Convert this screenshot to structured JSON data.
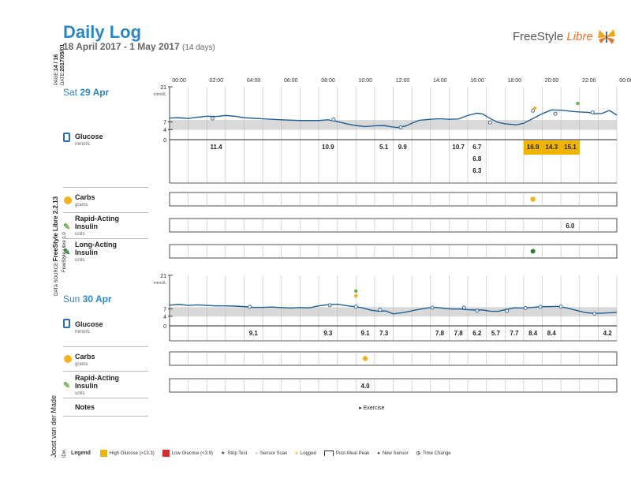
{
  "header": {
    "title": "Daily Log",
    "date_range": "18 April 2017 - 1 May 2017",
    "days": "(14 days)",
    "brand_freestyle": "FreeStyle",
    "brand_libre": "Libre"
  },
  "sidebar": {
    "page_label": "PAGE:",
    "page_value": "14 / 16",
    "date_label": "DATE:",
    "date_value": "2017/05/01",
    "source_label": "DATA SOURCE:",
    "source_value": "FreeStyle Libre 2.2.13",
    "source_sub": "FreeStyle Libre 1.0",
    "patient_name": "Joost van der Made",
    "id_label": "ID#:"
  },
  "time_axis": [
    "00:00",
    "02:00",
    "04:00",
    "06:00",
    "08:00",
    "10:00",
    "12:00",
    "14:00",
    "16:00",
    "18:00",
    "20:00",
    "22:00",
    "00:00"
  ],
  "glucose_axis": {
    "unit": "mmol/L",
    "ticks": [
      "21",
      "7",
      "4",
      "0"
    ],
    "ymax": 21,
    "target_low": 3.9,
    "target_high": 7.8
  },
  "labels": {
    "glucose": "Glucose",
    "glucose_unit": "mmol/L",
    "carbs": "Carbs",
    "carbs_unit": "grams",
    "rapid": "Rapid-Acting Insulin",
    "rapid_unit": "units",
    "long": "Long-Acting Insulin",
    "long_unit": "units",
    "notes": "Notes"
  },
  "days": [
    {
      "day_name": "Sat",
      "day_num": "29 Apr",
      "glucose_curve": [
        [
          0,
          8.6
        ],
        [
          0.5,
          8.7
        ],
        [
          1,
          8.4
        ],
        [
          1.5,
          8.9
        ],
        [
          2,
          9.3
        ],
        [
          2.5,
          9.2
        ],
        [
          3,
          9.6
        ],
        [
          3.5,
          9.3
        ],
        [
          4,
          8.7
        ],
        [
          5,
          8.3
        ],
        [
          6,
          7.9
        ],
        [
          7,
          7.6
        ],
        [
          8,
          7.6
        ],
        [
          8.5,
          7.9
        ],
        [
          9,
          7.2
        ],
        [
          9.5,
          6.3
        ],
        [
          10,
          5.6
        ],
        [
          10.5,
          5.2
        ],
        [
          11,
          5.5
        ],
        [
          11.5,
          5.6
        ],
        [
          12,
          5.0
        ],
        [
          12.3,
          4.8
        ],
        [
          12.7,
          5.5
        ],
        [
          13,
          6.5
        ],
        [
          13.4,
          7.7
        ],
        [
          14,
          8.1
        ],
        [
          14.5,
          8.3
        ],
        [
          15,
          8.1
        ],
        [
          15.5,
          8.2
        ],
        [
          16,
          9.6
        ],
        [
          16.5,
          10.5
        ],
        [
          16.8,
          10.2
        ],
        [
          17.2,
          8.4
        ],
        [
          17.6,
          6.9
        ],
        [
          18,
          6.3
        ],
        [
          18.6,
          5.9
        ],
        [
          19,
          6.5
        ],
        [
          19.5,
          8.4
        ],
        [
          20,
          10.3
        ],
        [
          20.5,
          11.8
        ],
        [
          21,
          11.7
        ],
        [
          21.5,
          11.3
        ],
        [
          22,
          11.0
        ],
        [
          22.5,
          10.8
        ],
        [
          22.8,
          10.3
        ],
        [
          23.2,
          10.4
        ],
        [
          23.6,
          11.6
        ],
        [
          24,
          9.8
        ]
      ],
      "scans": [
        [
          2.3,
          8.4
        ],
        [
          8.8,
          8.0
        ],
        [
          12.4,
          4.9
        ],
        [
          17.2,
          6.8
        ],
        [
          19.5,
          11.5
        ],
        [
          20.7,
          10.3
        ],
        [
          22.7,
          10.8
        ]
      ],
      "values": [
        {
          "t": 2.5,
          "text": "11.4",
          "row": 0,
          "high": false
        },
        {
          "t": 8.8,
          "text": "10.9",
          "row": 0,
          "high": false
        },
        {
          "t": 11.2,
          "text": "5.1",
          "row": 0,
          "high": false
        },
        {
          "t": 12.2,
          "text": "9.9",
          "row": 0,
          "high": false
        },
        {
          "t": 15.2,
          "text": "10.7",
          "row": 0,
          "high": false
        },
        {
          "t": 16.2,
          "text": "6.7",
          "row": 0,
          "high": false
        },
        {
          "t": 16.2,
          "text": "6.8",
          "row": 1,
          "high": false
        },
        {
          "t": 16.2,
          "text": "6.3",
          "row": 2,
          "high": false
        },
        {
          "t": 19.5,
          "text": "16.9",
          "row": 0,
          "high": true
        },
        {
          "t": 20.5,
          "text": "14.3",
          "row": 0,
          "high": true
        },
        {
          "t": 21.5,
          "text": "15.1",
          "row": 0,
          "high": true
        }
      ],
      "carbs": [
        {
          "t": 19.5
        }
      ],
      "rapid": [
        {
          "t": 21.8,
          "text": "6.0"
        }
      ],
      "long": [
        {
          "t": 19.5
        }
      ],
      "logged_markers": [
        {
          "t": 19.6,
          "kind": "carbs"
        },
        {
          "t": 21.9,
          "kind": "insulin"
        }
      ]
    },
    {
      "day_name": "Sun",
      "day_num": "30 Apr",
      "glucose_curve": [
        [
          0,
          8.6
        ],
        [
          0.5,
          8.9
        ],
        [
          1,
          8.5
        ],
        [
          1.5,
          8.7
        ],
        [
          2,
          8.5
        ],
        [
          2.5,
          8.3
        ],
        [
          3,
          8.3
        ],
        [
          3.5,
          8.2
        ],
        [
          4,
          8.0
        ],
        [
          4.5,
          7.7
        ],
        [
          5,
          7.7
        ],
        [
          5.5,
          7.8
        ],
        [
          6,
          7.6
        ],
        [
          6.5,
          7.4
        ],
        [
          7,
          7.6
        ],
        [
          7.5,
          7.5
        ],
        [
          8,
          8.3
        ],
        [
          8.5,
          8.8
        ],
        [
          9,
          9.0
        ],
        [
          9.4,
          8.5
        ],
        [
          9.8,
          8.1
        ],
        [
          10.3,
          7.6
        ],
        [
          10.8,
          6.5
        ],
        [
          11.2,
          6.1
        ],
        [
          11.6,
          6.2
        ],
        [
          12,
          5.0
        ],
        [
          12.6,
          5.6
        ],
        [
          13.2,
          6.6
        ],
        [
          13.8,
          7.4
        ],
        [
          14.3,
          7.7
        ],
        [
          14.8,
          7.2
        ],
        [
          15.2,
          7.0
        ],
        [
          15.6,
          7.0
        ],
        [
          16,
          6.7
        ],
        [
          16.4,
          6.6
        ],
        [
          16.8,
          6.6
        ],
        [
          17.2,
          6.1
        ],
        [
          17.6,
          6.0
        ],
        [
          18,
          6.7
        ],
        [
          18.5,
          7.5
        ],
        [
          19,
          7.4
        ],
        [
          19.5,
          7.7
        ],
        [
          20,
          8.0
        ],
        [
          20.4,
          8.0
        ],
        [
          20.8,
          8.1
        ],
        [
          21.3,
          7.5
        ],
        [
          21.8,
          6.5
        ],
        [
          22.3,
          5.5
        ],
        [
          22.8,
          5.2
        ],
        [
          23.3,
          5.3
        ],
        [
          24,
          5.6
        ]
      ],
      "scans": [
        [
          4.3,
          7.9
        ],
        [
          8.6,
          8.6
        ],
        [
          10,
          8.0
        ],
        [
          11.3,
          6.7
        ],
        [
          14.1,
          7.6
        ],
        [
          15.8,
          7.6
        ],
        [
          16.5,
          6.3
        ],
        [
          18.1,
          6.2
        ],
        [
          19.1,
          7.4
        ],
        [
          19.9,
          7.9
        ],
        [
          21,
          8.0
        ],
        [
          22.8,
          5.1
        ]
      ],
      "values": [
        {
          "t": 4.5,
          "text": "9.1",
          "row": 0,
          "high": false
        },
        {
          "t": 8.5,
          "text": "9.3",
          "row": 0,
          "high": false
        },
        {
          "t": 10.3,
          "text": "9.1",
          "row": 0,
          "high": false
        },
        {
          "t": 11.2,
          "text": "7.3",
          "row": 0,
          "high": false
        },
        {
          "t": 14.2,
          "text": "7.8",
          "row": 0,
          "high": false
        },
        {
          "t": 15.2,
          "text": "7.8",
          "row": 0,
          "high": false
        },
        {
          "t": 16.2,
          "text": "6.2",
          "row": 0,
          "high": false
        },
        {
          "t": 17.2,
          "text": "5.7",
          "row": 0,
          "high": false
        },
        {
          "t": 18.2,
          "text": "7.7",
          "row": 0,
          "high": false
        },
        {
          "t": 19.2,
          "text": "8.4",
          "row": 0,
          "high": false
        },
        {
          "t": 20.5,
          "text": "8.4",
          "row": 0,
          "high": false
        },
        {
          "t": 23.5,
          "text": "4.2",
          "row": 0,
          "high": false
        }
      ],
      "carbs": [
        {
          "t": 10.3
        }
      ],
      "rapid": [
        {
          "t": 10.3,
          "text": "4.0"
        }
      ],
      "notes": [
        {
          "t": 10.0,
          "text": "Exercise"
        }
      ],
      "logged_markers": [
        {
          "t": 10.0,
          "kind": "carbs"
        },
        {
          "t": 10.0,
          "kind": "insulin"
        }
      ]
    }
  ],
  "legend": {
    "title": "Legend",
    "high": "High Glucose (>13.3)",
    "low": "Low Glucose (<3.9)",
    "strip": "Strip Test",
    "scan": "Sensor Scan",
    "logged": "Logged",
    "peak": "Post-Meal Peak",
    "new_sensor": "New Sensor",
    "time_change": "Time Change",
    "high_color": "#f0b400",
    "low_color": "#d32f2f"
  },
  "colors": {
    "line": "#1f5f96",
    "accent": "#2a87c8",
    "target_band": "#d9d9d9",
    "high_bg": "#f0b400"
  }
}
